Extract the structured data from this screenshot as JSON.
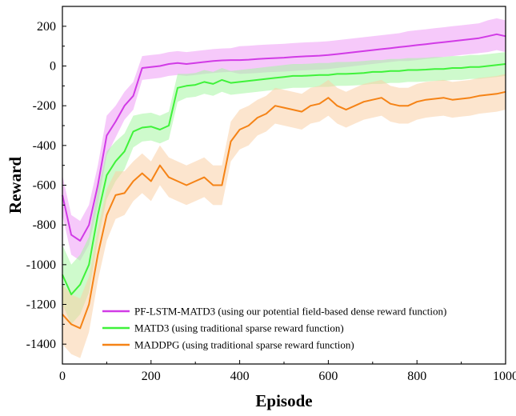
{
  "chart_data": {
    "type": "line",
    "title": "",
    "xlabel": "Episode",
    "ylabel": "Reward",
    "xlim": [
      0,
      1000
    ],
    "ylim": [
      -1500,
      300
    ],
    "xticks": [
      0,
      200,
      400,
      600,
      800,
      1000
    ],
    "xtick_labels": [
      "0",
      "200",
      "400",
      "600",
      "800",
      "1000"
    ],
    "yticks": [
      -1400,
      -1200,
      -1000,
      -800,
      -600,
      -400,
      -200,
      0,
      200
    ],
    "ytick_labels": [
      "-1400",
      "-1200",
      "-1000",
      "-800",
      "-600",
      "-400",
      "-200",
      "0",
      "200"
    ],
    "grid": false,
    "legend_position": "bottom-center",
    "x": [
      0,
      20,
      40,
      60,
      80,
      100,
      120,
      140,
      160,
      180,
      200,
      220,
      240,
      260,
      280,
      300,
      320,
      340,
      360,
      380,
      400,
      420,
      440,
      460,
      480,
      500,
      520,
      540,
      560,
      580,
      600,
      620,
      640,
      660,
      680,
      700,
      720,
      740,
      760,
      780,
      800,
      820,
      840,
      860,
      880,
      900,
      920,
      940,
      960,
      980,
      1000
    ],
    "series": [
      {
        "name": "PF-LSTM-MATD3 (using our potential field-based dense reward function)",
        "color": "#d13be6",
        "band_color": "#ee9cf6",
        "values": [
          -650,
          -850,
          -880,
          -800,
          -600,
          -350,
          -280,
          -200,
          -150,
          -10,
          -5,
          0,
          10,
          15,
          10,
          15,
          20,
          25,
          28,
          30,
          30,
          32,
          35,
          38,
          40,
          42,
          45,
          48,
          50,
          52,
          55,
          60,
          65,
          70,
          75,
          80,
          85,
          90,
          95,
          100,
          105,
          110,
          115,
          120,
          125,
          130,
          135,
          140,
          150,
          160,
          150
        ],
        "band": [
          100,
          100,
          100,
          100,
          100,
          100,
          80,
          70,
          70,
          60,
          60,
          60,
          60,
          60,
          60,
          60,
          60,
          60,
          60,
          60,
          70,
          70,
          70,
          70,
          70,
          70,
          70,
          70,
          70,
          70,
          70,
          70,
          70,
          70,
          70,
          70,
          70,
          70,
          70,
          75,
          75,
          75,
          75,
          75,
          75,
          75,
          75,
          75,
          80,
          80,
          80
        ]
      },
      {
        "name": "MATD3 (using traditional sparse reward function)",
        "color": "#3ff23a",
        "band_color": "#a6f6a2",
        "values": [
          -1050,
          -1150,
          -1100,
          -1000,
          -750,
          -550,
          -480,
          -430,
          -330,
          -310,
          -305,
          -320,
          -300,
          -110,
          -100,
          -95,
          -80,
          -90,
          -70,
          -85,
          -80,
          -75,
          -70,
          -65,
          -60,
          -55,
          -50,
          -50,
          -48,
          -45,
          -45,
          -40,
          -40,
          -38,
          -35,
          -30,
          -30,
          -25,
          -25,
          -20,
          -20,
          -18,
          -15,
          -15,
          -10,
          -10,
          -5,
          -5,
          0,
          5,
          10
        ],
        "band": [
          150,
          150,
          150,
          140,
          130,
          120,
          100,
          90,
          80,
          70,
          70,
          70,
          70,
          70,
          60,
          60,
          60,
          60,
          60,
          60,
          60,
          60,
          60,
          60,
          60,
          60,
          60,
          60,
          60,
          60,
          60,
          60,
          60,
          60,
          60,
          60,
          60,
          60,
          60,
          60,
          60,
          60,
          60,
          60,
          60,
          60,
          60,
          60,
          60,
          60,
          60
        ]
      },
      {
        "name": "MADDPG (using traditional sparse reward function)",
        "color": "#f58316",
        "band_color": "#f9cfa6",
        "values": [
          -1250,
          -1300,
          -1320,
          -1200,
          -950,
          -750,
          -650,
          -640,
          -580,
          -540,
          -580,
          -500,
          -560,
          -580,
          -600,
          -580,
          -560,
          -600,
          -600,
          -380,
          -320,
          -300,
          -260,
          -240,
          -200,
          -210,
          -220,
          -230,
          -200,
          -190,
          -160,
          -200,
          -220,
          -200,
          -180,
          -170,
          -160,
          -190,
          -200,
          -200,
          -180,
          -170,
          -165,
          -160,
          -170,
          -165,
          -160,
          -150,
          -145,
          -140,
          -130
        ],
        "band": [
          150,
          150,
          150,
          140,
          130,
          130,
          120,
          110,
          100,
          100,
          100,
          100,
          100,
          100,
          100,
          100,
          100,
          100,
          100,
          100,
          100,
          100,
          90,
          90,
          90,
          90,
          90,
          90,
          90,
          90,
          90,
          90,
          90,
          90,
          90,
          90,
          90,
          90,
          90,
          90,
          90,
          90,
          90,
          90,
          90,
          90,
          90,
          90,
          90,
          90,
          90
        ]
      }
    ]
  }
}
